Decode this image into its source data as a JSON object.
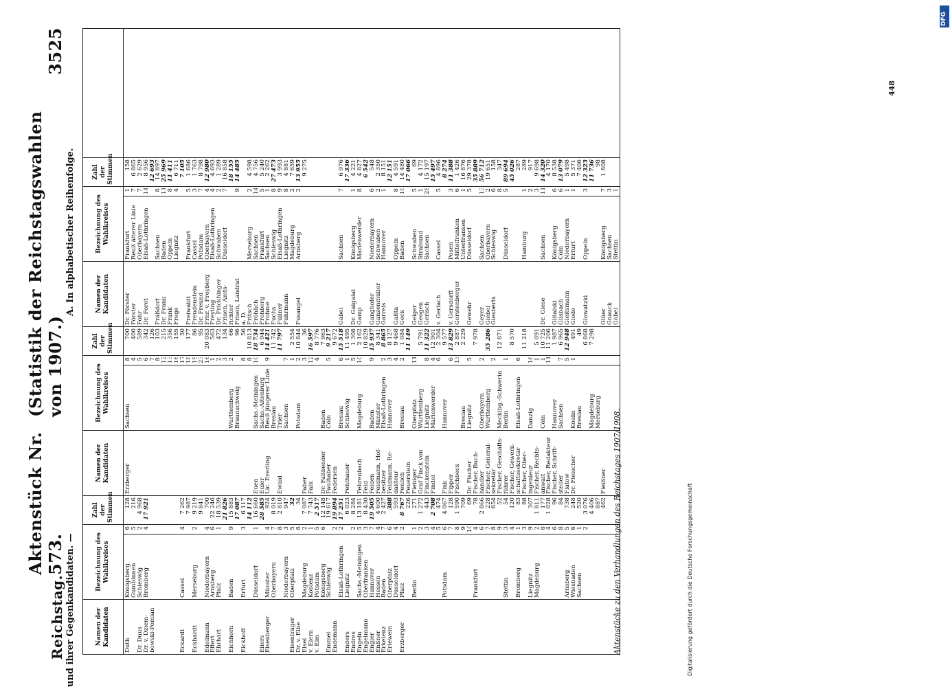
{
  "header": {
    "left": "Reichstag.",
    "center": "Aktenstück Nr. 573.",
    "right": "(Statistik der Reichstagswahlen von 1907.)",
    "page": "3525"
  },
  "subtitle": {
    "left": "und ihrer Gegenkandidaten. —",
    "right": "A. In alphabetischer Reihenfolge."
  },
  "columns": [
    "Namen der Kandidaten",
    "Bezeichnung des Wahlkreises",
    "Zahl der Stimmen",
    "Namen der Kandidaten",
    "Bezeichnung des Wahlkreises",
    "Zahl der Stimmen",
    "Namen der Kandidaten",
    "Bezeichnung des Wahlkreises",
    "Zahl der Stimmen"
  ],
  "blocks": [
    {
      "names": [
        "Duth",
        "",
        "Dr. Duus",
        "Dr. v. Dziem-",
        "bowski-Pomian",
        "",
        "",
        "",
        "",
        "Eckardt",
        "",
        "Eckhardt",
        "",
        "Edelmann",
        "Effert",
        "Ehrhart",
        "",
        "Eichhorn",
        "",
        "Eickhoff",
        "",
        "",
        "Eilers",
        "Eisenberger",
        "",
        "",
        "",
        "Eisenträger",
        "Dr. v. Elbe",
        "Elsel",
        "v. Elern",
        "v. Elm",
        "",
        "Emmel",
        "Endemann",
        "",
        "Enders",
        "Endres",
        "Engeln",
        "Engelmann",
        "Engler",
        "Enßner",
        "Erkelenz",
        "Erlewein",
        "",
        "Erzberger",
        "",
        "",
        "",
        "",
        "",
        "",
        "",
        "",
        "",
        "",
        "",
        "",
        "",
        "",
        "",
        "",
        "",
        "",
        "",
        "",
        "",
        "",
        "",
        "",
        ""
      ],
      "districts": [
        "Königsberg",
        "Gumbinnen",
        "Schleswig",
        "Bromberg",
        "",
        "",
        "",
        "",
        "",
        "Cassel",
        "",
        "Merseburg",
        "",
        "Niederbayern",
        "Arnsberg",
        "Pfalz",
        "",
        "Baden",
        "",
        "Erfurt",
        "",
        "Düsseldorf",
        "",
        "Münster",
        "Oberbayern",
        "",
        "Niederbayern",
        "Oberpfalz",
        "",
        "Magdeburg",
        "Koblenz",
        "Potsdam",
        "Königsberg",
        "Schleswig",
        "",
        "Elsaß-Lothringen",
        "Liegnitz",
        "",
        "Sachs.-Meiningen",
        "Oberfranken",
        "Hannover",
        "Hessen",
        "Baden",
        "Oberpfalz",
        "Düsseldorf",
        "Pfalz",
        "",
        "Berlin",
        "",
        "",
        "",
        "",
        "Potsdam",
        "",
        "",
        "",
        "",
        "Frankfurt",
        "",
        "",
        "",
        "",
        "Stettin",
        "",
        "Bromberg",
        "",
        "Liegnitz",
        "Magdeburg",
        "",
        "",
        "",
        "",
        "Arnsberg",
        "Wiesbaden",
        "Sachsen"
      ],
      "nums": [
        "6",
        "5",
        "2",
        "4",
        "",
        "",
        "",
        "",
        "",
        "4",
        "",
        "2",
        "",
        "4",
        "6",
        "1",
        "",
        "9",
        "",
        "3",
        "",
        "1",
        "",
        "4",
        "7",
        "8",
        "3",
        "5",
        "8",
        "2",
        "1",
        "5",
        "6",
        "",
        "2",
        "2",
        "",
        "2",
        "5",
        "3",
        "7",
        "4",
        "7",
        "6",
        "4",
        "2",
        "",
        "1",
        "2",
        "3",
        "4",
        "5",
        "6",
        "7",
        "8",
        "9",
        "10",
        "4",
        "6",
        "7",
        "8",
        "9",
        "3",
        "4",
        "1",
        "3",
        "9",
        "2",
        "8",
        "4",
        "6",
        "8",
        "5",
        "6",
        "1",
        "2"
      ],
      "votes": [
        "128",
        "216",
        "4 968",
        "17 921",
        "",
        "",
        "",
        "",
        "",
        "7 262",
        "7 987",
        "9 219",
        "9 841",
        "700",
        "22 246",
        "18 539",
        "21 826",
        "15 883",
        "17 087",
        "6 117",
        "14 112",
        "16 660",
        "28 585",
        "924",
        "8 019",
        "2 810",
        "947",
        "32",
        "34",
        "7 087",
        "7 743",
        "2 517",
        "12 148",
        "19 617",
        "19 894",
        "17 251",
        "6 023",
        "8 284",
        "13 181",
        "8 430",
        "19 505",
        "4 600",
        "2 427",
        "388",
        "593",
        "8 767",
        "226",
        "271",
        "1 272",
        "443",
        "2 708",
        "474",
        "4 067",
        "128",
        "1 590",
        "709",
        "69",
        "78",
        "2 866",
        "228",
        "654",
        "52",
        "54",
        "120",
        "83",
        "88",
        "307",
        "1 811",
        "177",
        "1 028",
        "96",
        "84",
        "738",
        "248",
        "520",
        "3 076",
        "4 406",
        "887",
        "462"
      ],
      "bold": [
        3,
        16,
        18,
        20,
        22,
        27,
        31,
        34,
        35,
        40,
        43,
        45,
        50
      ]
    },
    {
      "names": [
        "Erzberger",
        "",
        "",
        "",
        "",
        "",
        "",
        "",
        "",
        "",
        "",
        "",
        "",
        "",
        "",
        "",
        "",
        "",
        "",
        "",
        "",
        "Euen",
        "Euler",
        "Lic. Everling",
        "",
        "Ewald",
        "",
        "",
        "",
        "Faber",
        "Falk",
        "",
        "Dr. Faßbender",
        "Faulhaber",
        "Federsen",
        "",
        "Fehlhauer",
        "",
        "Fehrenbach",
        "Feld",
        "Felden",
        "Feldmann, Hof-",
        "besitzer",
        "Feldmann, Re-",
        "dakteur",
        "Fenlich",
        "Feuerstein",
        "Fiebiger",
        "Graf Finck von",
        "Finckenstein",
        "Findel",
        "",
        "Fink",
        "Fipper",
        "Fischbeck",
        "",
        "Dr. Fischer",
        "Fischer, Buch-",
        "händler",
        "Fischer, General-",
        "sekretär",
        "Fischer, Geschäfts-",
        "führer",
        "Fischer, Gewerk-",
        "schaftssekretär",
        "Fischer, Ober-",
        "ingenieur",
        "Fischer, Rechts-",
        "anwalt",
        "Fischer, Redakteur",
        "Fischer, Schrift-",
        "steller",
        "Flatow",
        "Dr. Fleischer",
        "",
        "",
        "",
        "",
        "Fleißner"
      ],
      "districts": [
        "Sachsen",
        "",
        "",
        "",
        "",
        "",
        "",
        "",
        "",
        "",
        "",
        "",
        "",
        "",
        "",
        "",
        "",
        "Württemberg",
        "Braunschweig",
        "",
        "",
        "Sachs.-Meiningen",
        "Sachs.-Altenburg",
        "Reuß jüngerer Linie",
        "Breslau",
        "Trier",
        "Sachsen",
        "",
        "Potsdam",
        "",
        "",
        "",
        "Baden",
        "Cöln",
        "",
        "Breslau",
        "Schleswig",
        "",
        "Magdeburg",
        "",
        "Baden",
        "Münster",
        "Elsaß-Lothringen",
        "Hannover",
        "",
        "Breslau",
        "",
        "Oberpfalz",
        "Württemberg",
        "Liegnitz",
        "Marienwerder",
        "",
        "Hannover",
        "",
        "",
        "Breslau",
        "Liegnitz",
        "",
        "Oberbayern",
        "Württemberg",
        "",
        "Mecklbg.-Schwerin",
        "Berlin",
        "",
        "Elsaß-Lothringen",
        "",
        "Danzig",
        "",
        "Cöln",
        "",
        "Hannover",
        "Sachsen",
        "",
        "Köslin",
        "Breslau",
        "",
        "Magdeburg",
        "Merseburg",
        ""
      ],
      "nums": [
        "8",
        "4",
        "5",
        "6",
        "7",
        "8",
        "12",
        "13",
        "16",
        "17",
        "18",
        "19",
        "23",
        "16",
        "1",
        "2",
        "3",
        "2",
        "",
        "8",
        "8",
        "10",
        "",
        "9",
        "",
        "",
        "7",
        "1",
        "2",
        "3",
        "12",
        "4",
        "",
        "5",
        "",
        "6",
        "1",
        "5",
        "10",
        "",
        "9",
        "",
        "2",
        "3",
        "4",
        "2",
        "",
        "11",
        "",
        "8",
        "4",
        "6",
        "",
        "6",
        "13",
        "",
        "5",
        "",
        "2",
        "",
        "2",
        "",
        "1",
        "",
        "6",
        "",
        "16",
        "1",
        "1",
        "11",
        "",
        "7",
        "5",
        "1"
      ],
      "votes": [
        "700",
        "400",
        "589",
        "342",
        "126",
        "103",
        "215",
        "356",
        "155",
        "50",
        "177",
        "86",
        "95",
        "20 083",
        "563",
        "472",
        "134",
        "66",
        "96",
        "56",
        "10 813",
        "18 734",
        "6 944",
        "14 421",
        "11 742",
        "11 797",
        "",
        "2 554",
        "10 844",
        "36",
        "16 597",
        "8 776",
        "7 963",
        "9 217",
        "9 672",
        "15 518",
        "11 495",
        "1 308",
        "2 162",
        "10 829",
        "15 937",
        "8 341",
        "8 865",
        "8 127",
        "9 468",
        "1 084",
        "11 149",
        "",
        "5 791",
        "11 322",
        "12 901",
        "2 304",
        "9 577",
        "13 829",
        "2 887",
        "2 229",
        "",
        "7 978",
        "",
        "35 286",
        "",
        "12 871",
        "",
        "8 570",
        "",
        "11 218",
        "",
        "5 091",
        "10 725",
        "11 206",
        "1 987",
        "6 965",
        "12 948",
        "491",
        "49",
        "6 868",
        "7 298"
      ],
      "bold": [
        21,
        23,
        25,
        30,
        33,
        35,
        40,
        42,
        46,
        49,
        53,
        59,
        72,
        77
      ]
    },
    {
      "names": [
        "Dr. Förster",
        "Förster",
        "Fohr",
        "Dr. Foret",
        "",
        "Fräßdorf",
        "Dr. Frank",
        "Frank",
        "Frege",
        "",
        "Freiwaldt",
        "Freudenstein",
        "Dr. Freund",
        "Frhr. v. Freyberg",
        "Freyling",
        "Dr. Frickhinger",
        "Frisen, Amts-",
        "richter",
        "Frisen, Landrat",
        "a. D.",
        "Fritsch",
        "Fröhlich",
        "Frohberg",
        "Frohme",
        "Fuchs",
        "Füllner",
        "Fuhrmann",
        "",
        "Fusangel",
        "",
        "",
        "",
        "",
        "",
        "",
        "Gäbel",
        "",
        "Dr. Gaigalat",
        "Gamp",
        "",
        "Ganghofer",
        "Ganzenmüller",
        "Garrels",
        "",
        "Gaßta",
        "Geck",
        "",
        "Geiger",
        "Geogen",
        "Gerisch",
        "",
        "v. Gerlach",
        "",
        "v. Gersdorff",
        "Gerstenberger",
        "",
        "Gewehr",
        "",
        "Geyer",
        "Giebel",
        "Giesberts",
        "",
        "",
        "",
        "",
        "",
        "",
        "",
        "Dr. Giese",
        "",
        "Gißalski",
        "Glisbach",
        "Gleitsmann",
        "Glode",
        "",
        "Glowatzki",
        "",
        "",
        "Glüer",
        "Gnauck",
        "Göbel"
      ],
      "districts": [
        "Frankfurt",
        "Reuß älterer Linie",
        "Oberbayern",
        "Elsaß-Lothringen",
        "",
        "Sachsen",
        "Baden",
        "Oppeln",
        "Liegnitz",
        "",
        "Frankfurt",
        "Cassel",
        "Potsdam",
        "Oberbayern",
        "Elsaß-Lothringen",
        "Schwaben",
        "Düsseldorf",
        "",
        "",
        "",
        "Merseburg",
        "Sachsen",
        "Frankfurt",
        "Sachsen",
        "Schleswig",
        "Elsaß-Lothringen",
        "Liegnitz",
        "Magdeburg",
        "Arnsberg",
        "",
        "",
        "",
        "",
        "",
        "",
        "Sachsen",
        "",
        "Königsberg",
        "Marienwerder",
        "",
        "Niederbayern",
        "Schwaben",
        "Hannover",
        "",
        "Oppeln",
        "Baden",
        "",
        "Schwaben",
        "Stralsund",
        "Sachsen",
        "",
        "Cassel",
        "",
        "Posen",
        "Mittelfranken",
        "Unterfranken",
        "Düsseldorf",
        "",
        "Sachsen",
        "Oberbayern",
        "Schleswig",
        "",
        "Düsseldorf",
        "",
        "",
        "Hamburg",
        "",
        "",
        "Sachsen",
        "",
        "Königsberg",
        "Cöln",
        "Niederbayern",
        "Erfurt",
        "",
        "Oppeln",
        "",
        "",
        "Königsberg",
        "Sachsen",
        "Stettin"
      ],
      "nums": [
        "1",
        "7",
        "7",
        "14",
        "",
        "8",
        "11",
        "8",
        "4",
        "",
        "5",
        "3",
        "7",
        "4",
        "4",
        "2",
        "7",
        "",
        "9",
        "",
        "2",
        "14",
        "5",
        "1",
        "8",
        "9",
        "8",
        "2",
        "2",
        "",
        "",
        "",
        "",
        "",
        "",
        "7",
        "",
        "1",
        "8",
        "",
        "6",
        "2",
        "1",
        "",
        "8",
        "10",
        "",
        "5",
        "1",
        "28",
        "",
        "5",
        "",
        "3",
        "6",
        "1",
        "5",
        "",
        "13",
        "2",
        "6",
        "8",
        "5",
        "",
        "",
        "1",
        "2",
        "3",
        "11",
        "",
        "6",
        "6",
        "1",
        "1",
        "",
        "3",
        "",
        "",
        "7",
        "3",
        "1"
      ],
      "votes": [
        "158",
        "6 865",
        "2 629",
        "8 956",
        "12 693",
        "14 897",
        "25 969",
        "11 411",
        "6 711",
        "7 105",
        "1 686",
        "1 763",
        "8 798",
        "12 980",
        "4 693",
        "1 289",
        "16 858",
        "18 155",
        "14 485",
        "",
        "4 598",
        "4 756",
        "5 240",
        "2 262",
        "27 473",
        "3 993",
        "4 881",
        "7 659",
        "13 955",
        "9 275",
        "",
        "",
        "",
        "",
        "",
        "6 976",
        "17 336",
        "4 221",
        "4 827",
        "6 542",
        "548",
        "2 350",
        "8 151",
        "12 151",
        "4 591",
        "14 480",
        "17 066",
        "69",
        "4 172",
        "15 197",
        "15 497",
        "4 896",
        "8 274",
        "11 388",
        "1 426",
        "16 876",
        "29 378",
        "35 889",
        "56 712",
        "19 651",
        "158",
        "347",
        "89 694",
        "45 026",
        "287",
        "289",
        "917",
        "9 698",
        "14 320",
        "4 170",
        "8 538",
        "13 079",
        "5 498",
        "5 371",
        "7 406",
        "12 323",
        "11 736",
        "98",
        "1 808",
        ""
      ],
      "bold": [
        4,
        6,
        7,
        9,
        13,
        17,
        18,
        24,
        28,
        36,
        39,
        43,
        46,
        50,
        52,
        53,
        57,
        58,
        62,
        63,
        68,
        71,
        75,
        76
      ]
    }
  ],
  "footer": "Aktenstücke zu den Verhandlungen des Reichstages 1907/1908.",
  "page_number": "448",
  "side_note": "Digitalisierung gefördert durch die Deutsche Forschungsgemeinschaft",
  "logo_text": "DFG"
}
